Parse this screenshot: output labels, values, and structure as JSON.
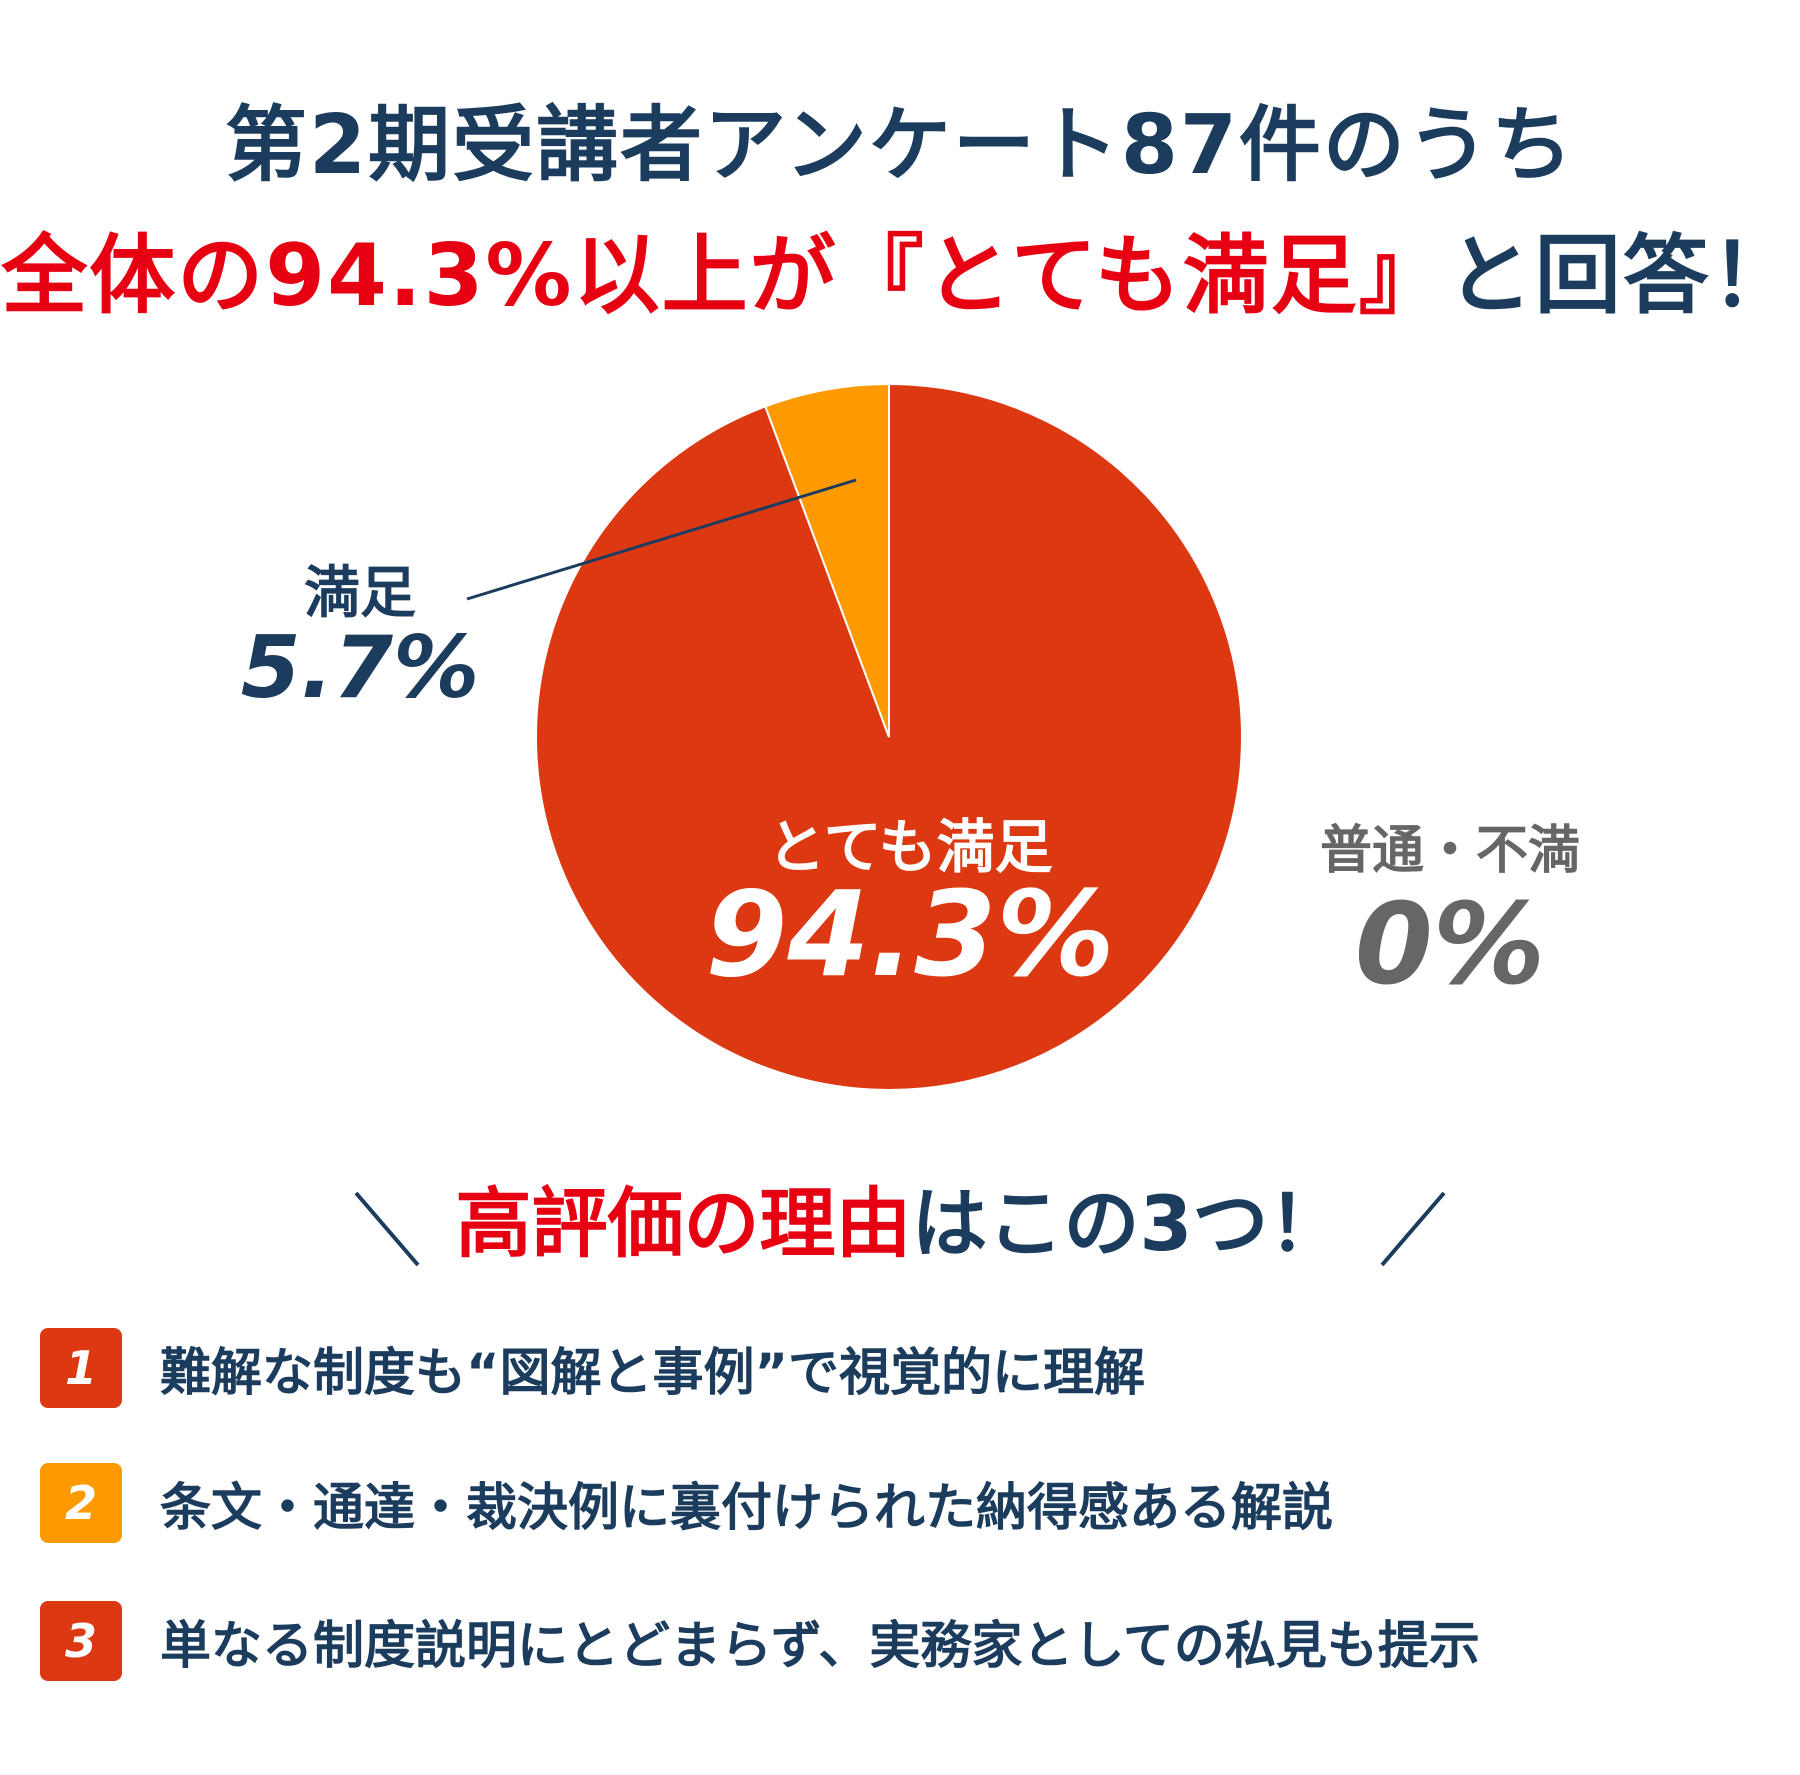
{
  "header": {
    "line1": "第2期受講者アンケート87件のうち",
    "line2_red": "全体の94.3%以上が『とても満足』",
    "line2_rest": "と回答！"
  },
  "chart_data": {
    "type": "pie",
    "slices": [
      {
        "label": "とても満足",
        "value": 94.3,
        "display": "94.3%",
        "color": "#dc3912"
      },
      {
        "label": "満足",
        "value": 5.7,
        "display": "5.7%",
        "color": "#ff9900"
      },
      {
        "label": "普通・不満",
        "value": 0,
        "display": "0%",
        "color": "#666666"
      }
    ],
    "start": "12 o'clock",
    "direction": "clockwise"
  },
  "reasons": {
    "heading_red": "高評価の理由",
    "heading_rest": "はこの3つ！",
    "items": [
      {
        "num": "1",
        "text": "難解な制度も“図解と事例”で視覚的に理解",
        "color": "#dc3912"
      },
      {
        "num": "2",
        "text": "条文・通達・裁決例に裏付けられた納得感ある解説",
        "color": "#ff9900"
      },
      {
        "num": "3",
        "text": "単なる制度説明にとどまらず、実務家としての私見も提示",
        "color": "#dc3912"
      }
    ]
  }
}
